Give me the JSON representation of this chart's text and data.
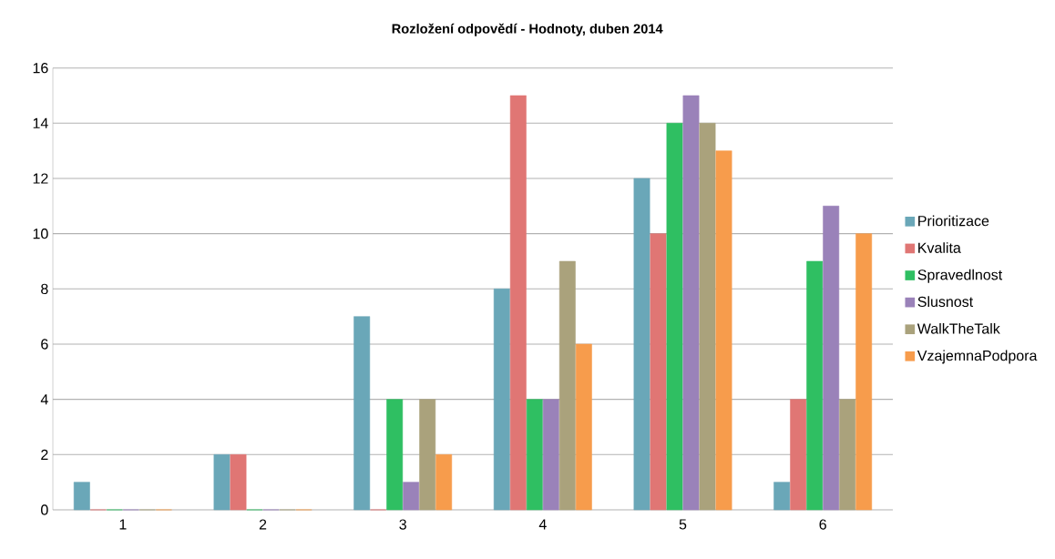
{
  "chart_data": {
    "type": "bar",
    "title": "Rozložení odpovědí - Hodnoty, duben 2014",
    "categories": [
      "1",
      "2",
      "3",
      "4",
      "5",
      "6"
    ],
    "series": [
      {
        "name": "Prioritizace",
        "color": "#6aa7b8",
        "values": [
          1,
          2,
          7,
          8,
          12,
          1
        ]
      },
      {
        "name": "Kvalita",
        "color": "#e07674",
        "values": [
          0,
          2,
          0,
          15,
          10,
          4
        ]
      },
      {
        "name": "Spravedlnost",
        "color": "#2fbf62",
        "values": [
          0,
          0,
          4,
          4,
          14,
          9
        ]
      },
      {
        "name": "Slusnost",
        "color": "#9a82b9",
        "values": [
          0,
          0,
          1,
          4,
          15,
          11
        ]
      },
      {
        "name": "WalkTheTalk",
        "color": "#aaa27c",
        "values": [
          0,
          0,
          4,
          9,
          14,
          4
        ]
      },
      {
        "name": "VzajemnaPodpora",
        "color": "#f79c4c",
        "values": [
          0,
          0,
          2,
          6,
          13,
          10
        ]
      }
    ],
    "ylim": [
      0,
      16
    ],
    "yticks": [
      0,
      2,
      4,
      6,
      8,
      10,
      12,
      14,
      16
    ],
    "grid": "y",
    "legend": "right"
  }
}
